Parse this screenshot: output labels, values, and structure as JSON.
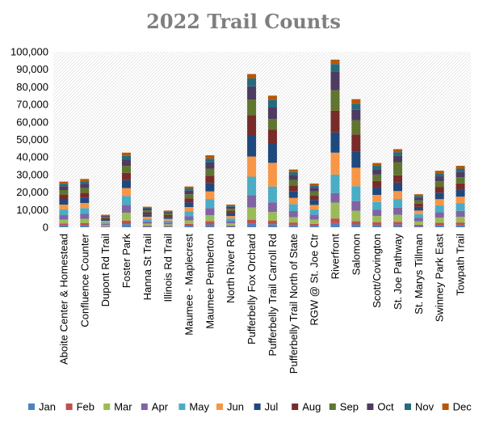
{
  "chart_data": {
    "type": "bar",
    "stacked": true,
    "title": "2022 Trail Counts",
    "xlabel": "",
    "ylabel": "",
    "ylim": [
      0,
      100000
    ],
    "yticks": [
      "0",
      "10,000",
      "20,000",
      "30,000",
      "40,000",
      "50,000",
      "60,000",
      "70,000",
      "80,000",
      "90,000",
      "100,000"
    ],
    "grid": false,
    "legend_position": "bottom",
    "categories": [
      "Aboite Center & Homestead",
      "Confluence Counter",
      "Dupont Rd Trail",
      "Foster Park",
      "Hanna St Trail",
      "Illinois Rd Trail",
      "Maumee - Maplecrest",
      "Maumee Pemberton",
      "North River Rd",
      "Pufferbelly Fox Orchard",
      "Pufferbelly Trail Carroll Rd",
      "Pufferbelly Trail North of State",
      "RGW @ St. Joe Ctr",
      "Riverfront",
      "Salomon",
      "Scott/Covington",
      "St. Joe Pathway",
      "St. Marys Tillman",
      "Swinney Park East",
      "Towpath Trail"
    ],
    "series": [
      {
        "name": "Jan",
        "color": "#4f81bd",
        "values": [
          1000,
          1100,
          300,
          1800,
          500,
          400,
          900,
          1600,
          500,
          2000,
          1700,
          1300,
          900,
          2400,
          1600,
          1400,
          1500,
          700,
          1200,
          1300
        ]
      },
      {
        "name": "Feb",
        "color": "#c0504d",
        "values": [
          1100,
          1200,
          300,
          2000,
          500,
          400,
          1000,
          1800,
          500,
          2300,
          2000,
          1400,
          1000,
          2600,
          1800,
          1500,
          1600,
          800,
          1300,
          1400
        ]
      },
      {
        "name": "Mar",
        "color": "#9bbb59",
        "values": [
          2300,
          2500,
          600,
          4500,
          1100,
          900,
          2000,
          3500,
          1200,
          7000,
          5000,
          3000,
          2500,
          9000,
          6000,
          3500,
          4000,
          1800,
          3000,
          3300
        ]
      },
      {
        "name": "Apr",
        "color": "#8064a2",
        "values": [
          2500,
          2800,
          700,
          4500,
          1200,
          1000,
          2300,
          4000,
          1300,
          7000,
          5500,
          3500,
          2700,
          5500,
          5500,
          3500,
          4000,
          2000,
          3000,
          3300
        ]
      },
      {
        "name": "May",
        "color": "#4bacc6",
        "values": [
          3200,
          3300,
          900,
          5000,
          1400,
          1100,
          2800,
          5000,
          1500,
          10500,
          9000,
          4000,
          3000,
          10500,
          8500,
          4500,
          5000,
          2200,
          4000,
          4300
        ]
      },
      {
        "name": "Jun",
        "color": "#f79646",
        "values": [
          2800,
          2900,
          800,
          4500,
          1300,
          1000,
          2500,
          4500,
          1400,
          11500,
          13500,
          3500,
          2600,
          12500,
          10500,
          4000,
          4500,
          2000,
          3500,
          3800
        ]
      },
      {
        "name": "Jul",
        "color": "#1f497d",
        "values": [
          3000,
          3100,
          800,
          4500,
          1300,
          1100,
          2600,
          4800,
          1500,
          12000,
          11000,
          3700,
          2800,
          11500,
          9000,
          4200,
          4800,
          2100,
          3700,
          4000
        ]
      },
      {
        "name": "Aug",
        "color": "#772c2a",
        "values": [
          2700,
          2800,
          700,
          4200,
          1200,
          1000,
          2400,
          4200,
          1300,
          11500,
          8000,
          3300,
          2500,
          12500,
          10000,
          3800,
          4200,
          1900,
          3300,
          3600
        ]
      },
      {
        "name": "Sep",
        "color": "#5f7530",
        "values": [
          2600,
          2700,
          700,
          4000,
          1100,
          900,
          2300,
          4000,
          1300,
          9000,
          6000,
          3200,
          2400,
          11500,
          8000,
          3600,
          7500,
          1800,
          3200,
          3500
        ]
      },
      {
        "name": "Oct",
        "color": "#4d3b62",
        "values": [
          2200,
          2300,
          600,
          3500,
          1000,
          800,
          2000,
          3500,
          1100,
          7500,
          6500,
          2800,
          2100,
          10500,
          6000,
          3100,
          3500,
          1600,
          2800,
          3000
        ]
      },
      {
        "name": "Nov",
        "color": "#276a7c",
        "values": [
          1400,
          1500,
          400,
          2200,
          600,
          500,
          1300,
          2200,
          700,
          4500,
          4500,
          1700,
          1300,
          4500,
          3500,
          1900,
          2200,
          1000,
          1700,
          1900
        ]
      },
      {
        "name": "Dec",
        "color": "#b65708",
        "values": [
          1200,
          1300,
          300,
          1800,
          500,
          400,
          1100,
          1900,
          600,
          2500,
          2300,
          1500,
          1100,
          2500,
          2600,
          1600,
          1700,
          900,
          1500,
          1600
        ]
      }
    ]
  }
}
